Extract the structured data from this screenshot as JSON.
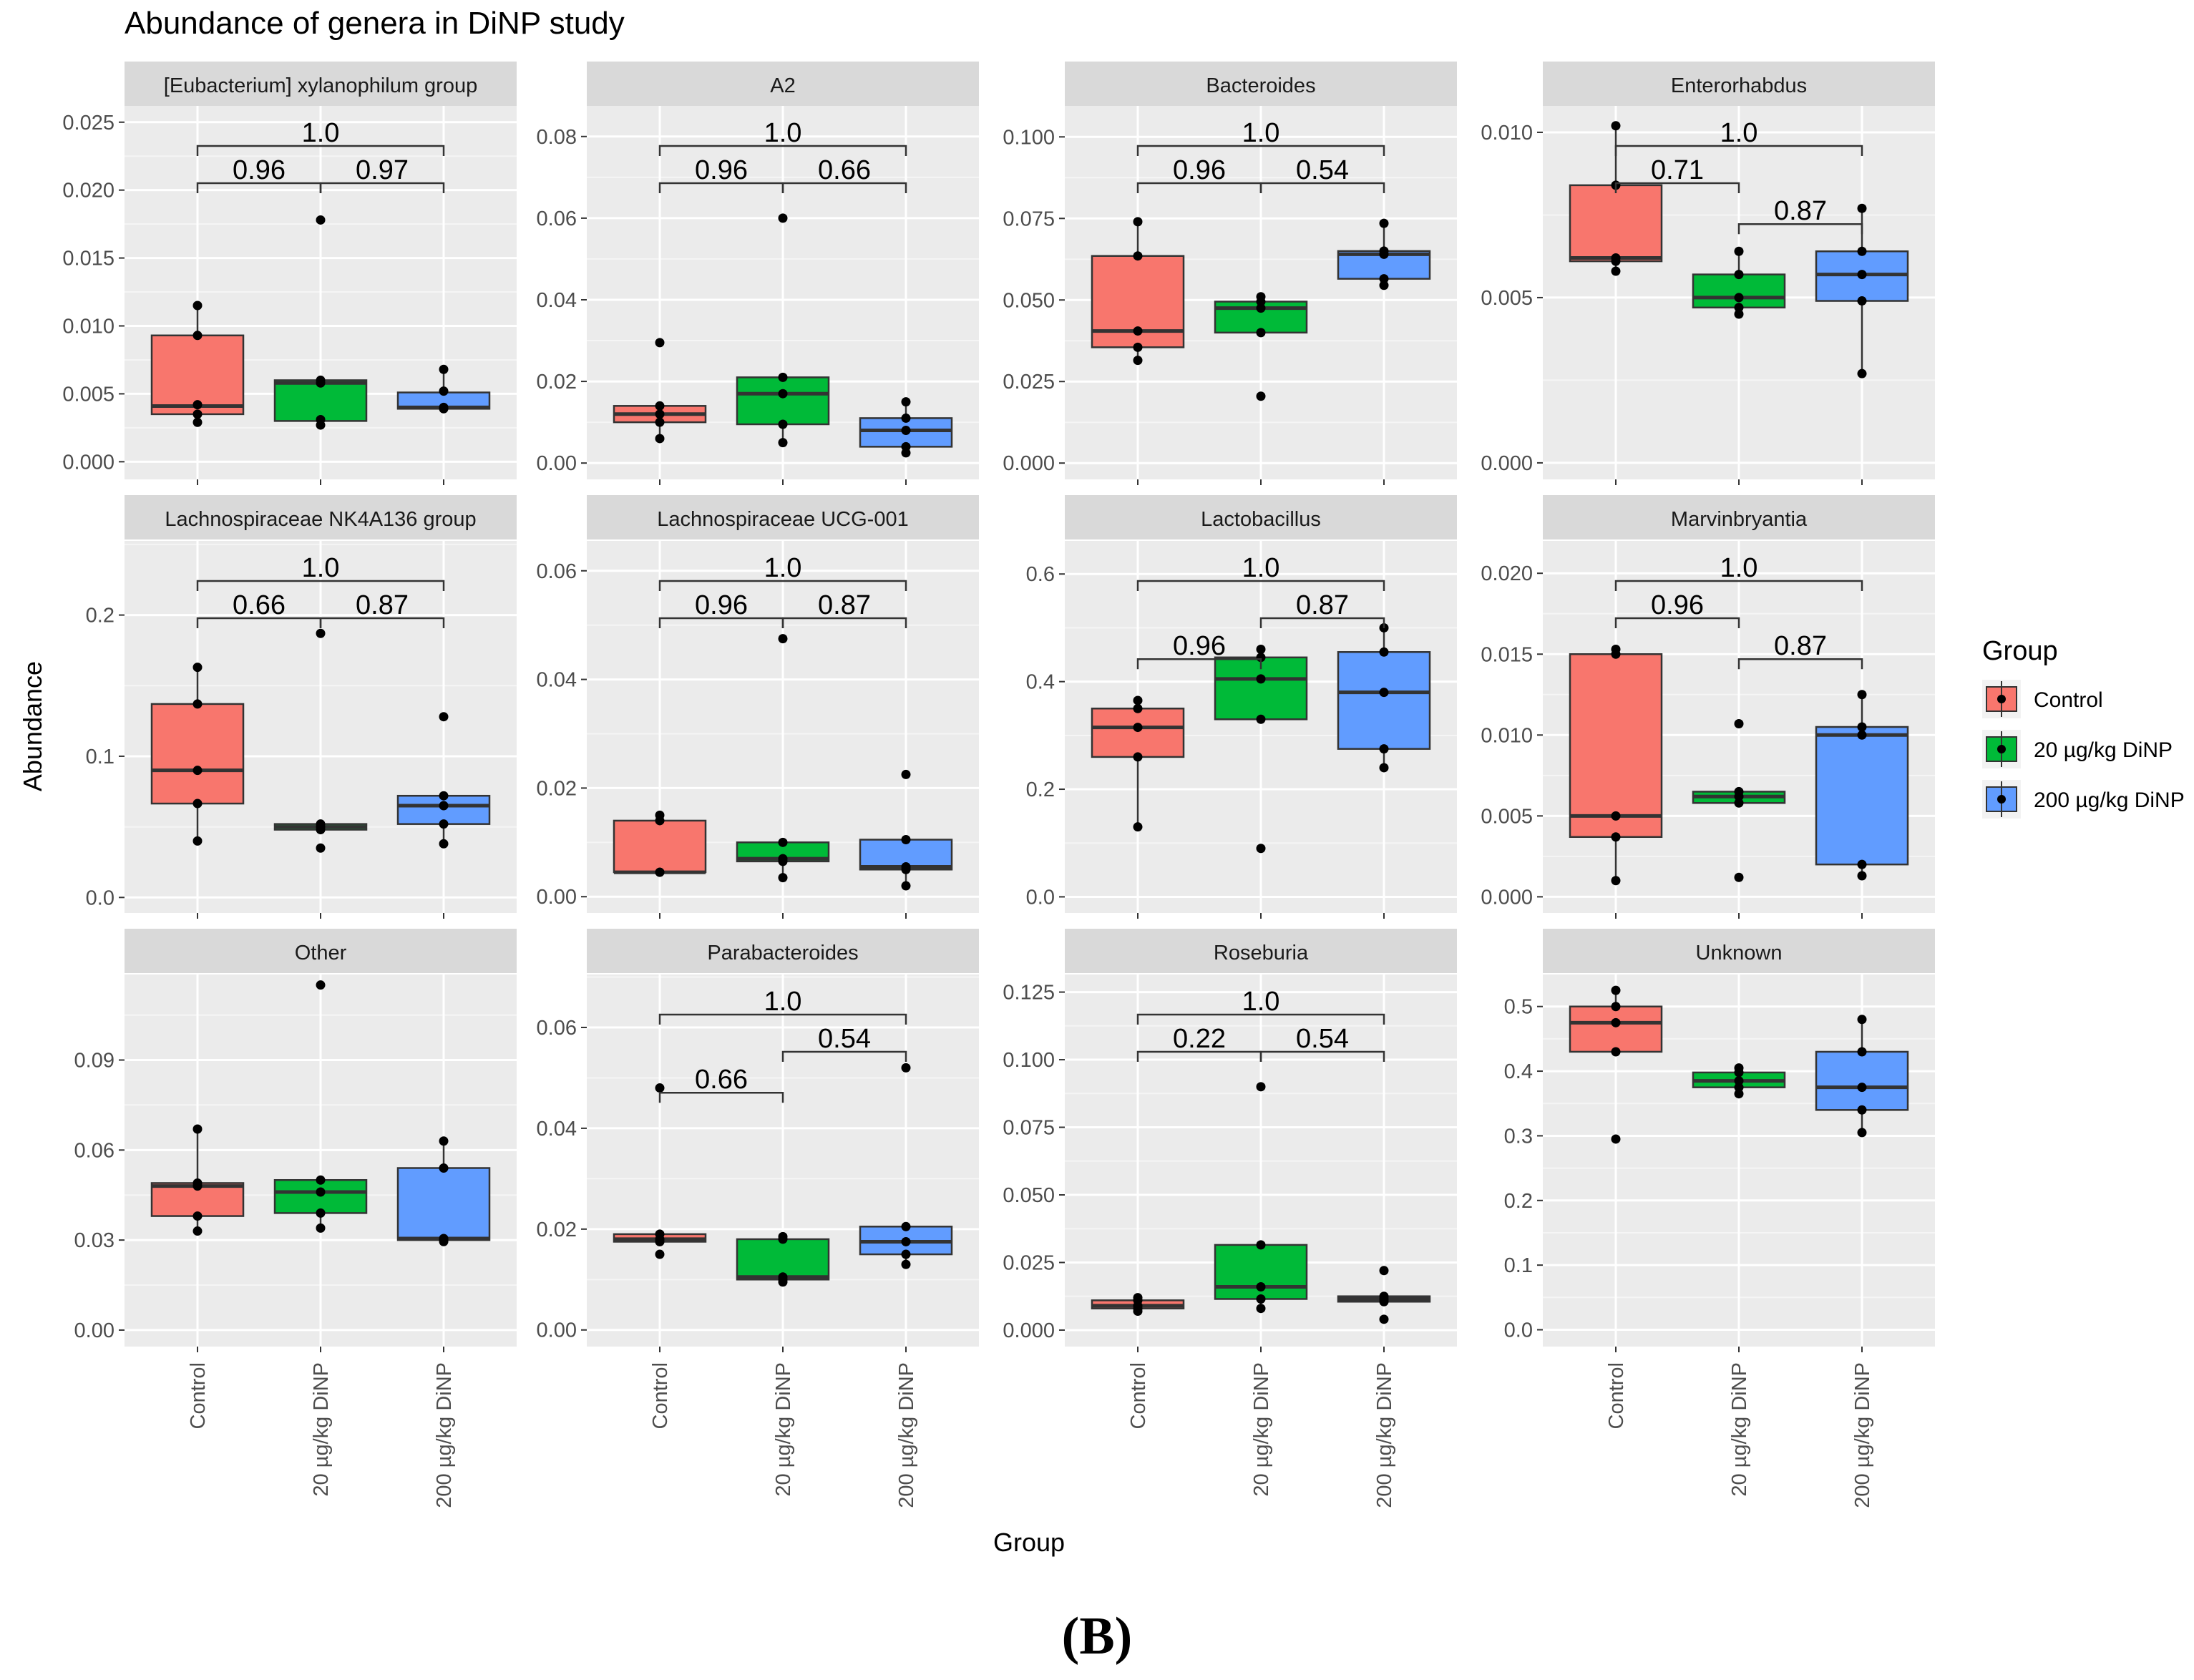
{
  "figure": {
    "title": "Abundance of genera in DiNP study",
    "panel_label": "(B)"
  },
  "chart_data": {
    "type": "box",
    "title": "Abundance of genera in DiNP study",
    "xlabel": "Group",
    "ylabel": "Abundance",
    "grid": true,
    "categories": [
      "Control",
      "20 µg/kg DiNP",
      "200 µg/kg DiNP"
    ],
    "legend": {
      "title": "Group",
      "position": "right",
      "entries": [
        {
          "label": "Control",
          "color": "#F8766D"
        },
        {
          "label": "20 µg/kg DiNP",
          "color": "#00BA38"
        },
        {
          "label": "200 µg/kg DiNP",
          "color": "#619CFF"
        }
      ]
    },
    "facets": [
      {
        "name": "[Eubacterium] xylanophilum group",
        "ylim": [
          -0.0013,
          0.0262
        ],
        "yticks": [
          "0.000",
          "0.005",
          "0.010",
          "0.015",
          "0.020",
          "0.025"
        ],
        "boxes": [
          {
            "q1": 0.0035,
            "median": 0.0041,
            "q3": 0.0093,
            "lo": 0.0029,
            "hi": 0.0115,
            "points": [
              0.0029,
              0.0035,
              0.0042,
              0.0093,
              0.0115
            ]
          },
          {
            "q1": 0.003,
            "median": 0.0058,
            "q3": 0.006,
            "lo": 0.0027,
            "hi": 0.006,
            "outliers": [
              0.0178
            ],
            "points": [
              0.0027,
              0.0031,
              0.0058,
              0.006,
              0.0178
            ]
          },
          {
            "q1": 0.0039,
            "median": 0.004,
            "q3": 0.0051,
            "lo": 0.0039,
            "hi": 0.0068,
            "points": [
              0.0039,
              0.004,
              0.0052,
              0.0068
            ]
          }
        ],
        "comparisons": [
          {
            "from": 0,
            "to": 2,
            "level": 1,
            "label": "1.0"
          },
          {
            "from": 0,
            "to": 1,
            "level": 0,
            "label": "0.96"
          },
          {
            "from": 1,
            "to": 2,
            "level": 0,
            "label": "0.97"
          }
        ]
      },
      {
        "name": "A2",
        "ylim": [
          -0.004,
          0.0875
        ],
        "yticks": [
          "0.00",
          "0.02",
          "0.04",
          "0.06",
          "0.08"
        ],
        "boxes": [
          {
            "q1": 0.01,
            "median": 0.012,
            "q3": 0.014,
            "lo": 0.006,
            "hi": 0.014,
            "outliers": [
              0.0295
            ],
            "points": [
              0.006,
              0.01,
              0.012,
              0.014,
              0.0295
            ]
          },
          {
            "q1": 0.0095,
            "median": 0.017,
            "q3": 0.021,
            "lo": 0.005,
            "hi": 0.021,
            "outliers": [
              0.06
            ],
            "points": [
              0.005,
              0.0095,
              0.017,
              0.021,
              0.06
            ]
          },
          {
            "q1": 0.004,
            "median": 0.008,
            "q3": 0.011,
            "lo": 0.0025,
            "hi": 0.015,
            "points": [
              0.0025,
              0.004,
              0.008,
              0.011,
              0.015
            ]
          }
        ],
        "comparisons": [
          {
            "from": 0,
            "to": 2,
            "level": 1,
            "label": "1.0"
          },
          {
            "from": 0,
            "to": 1,
            "level": 0,
            "label": "0.96"
          },
          {
            "from": 1,
            "to": 2,
            "level": 0,
            "label": "0.66"
          }
        ]
      },
      {
        "name": "Bacteroides",
        "ylim": [
          -0.005,
          0.1095
        ],
        "yticks": [
          "0.000",
          "0.025",
          "0.050",
          "0.075",
          "0.100"
        ],
        "boxes": [
          {
            "q1": 0.0355,
            "median": 0.0405,
            "q3": 0.0635,
            "lo": 0.0315,
            "hi": 0.074,
            "points": [
              0.0315,
              0.0355,
              0.0405,
              0.0635,
              0.074
            ]
          },
          {
            "q1": 0.04,
            "median": 0.0475,
            "q3": 0.0495,
            "lo": 0.04,
            "hi": 0.051,
            "outliers": [
              0.0205
            ],
            "points": [
              0.0205,
              0.04,
              0.0475,
              0.0495,
              0.051
            ]
          },
          {
            "q1": 0.0565,
            "median": 0.064,
            "q3": 0.065,
            "lo": 0.0545,
            "hi": 0.0735,
            "points": [
              0.0545,
              0.0565,
              0.064,
              0.065,
              0.0735
            ]
          }
        ],
        "comparisons": [
          {
            "from": 0,
            "to": 2,
            "level": 1,
            "label": "1.0"
          },
          {
            "from": 0,
            "to": 1,
            "level": 0,
            "label": "0.96"
          },
          {
            "from": 1,
            "to": 2,
            "level": 0,
            "label": "0.54"
          }
        ]
      },
      {
        "name": "Enterorhabdus",
        "ylim": [
          -0.0005,
          0.0108
        ],
        "yticks": [
          "0.000",
          "0.005",
          "0.010"
        ],
        "boxes": [
          {
            "q1": 0.0061,
            "median": 0.0062,
            "q3": 0.0084,
            "lo": 0.0058,
            "hi": 0.0102,
            "points": [
              0.0058,
              0.0061,
              0.0062,
              0.0084,
              0.0102
            ]
          },
          {
            "q1": 0.0047,
            "median": 0.005,
            "q3": 0.0057,
            "lo": 0.0045,
            "hi": 0.0064,
            "points": [
              0.0045,
              0.0047,
              0.005,
              0.0057,
              0.0064
            ]
          },
          {
            "q1": 0.0049,
            "median": 0.0057,
            "q3": 0.0064,
            "lo": 0.0027,
            "hi": 0.0077,
            "points": [
              0.0027,
              0.0049,
              0.0057,
              0.0064,
              0.0077
            ]
          }
        ],
        "comparisons": [
          {
            "from": 0,
            "to": 2,
            "level": 1,
            "label": "1.0"
          },
          {
            "from": 0,
            "to": 1,
            "level": 0,
            "label": "0.71"
          },
          {
            "from": 1,
            "to": 2,
            "level": -1.1,
            "label": "0.87"
          }
        ]
      },
      {
        "name": "Lachnospiraceae NK4A136 group",
        "ylim": [
          -0.011,
          0.2525
        ],
        "yticks": [
          "0.0",
          "0.1",
          "0.2"
        ],
        "boxes": [
          {
            "q1": 0.0665,
            "median": 0.09,
            "q3": 0.137,
            "lo": 0.04,
            "hi": 0.163,
            "points": [
              0.04,
              0.0665,
              0.09,
              0.137,
              0.163
            ]
          },
          {
            "q1": 0.048,
            "median": 0.05,
            "q3": 0.052,
            "lo": 0.048,
            "hi": 0.052,
            "outliers": [
              0.035,
              0.187
            ],
            "points": [
              0.035,
              0.048,
              0.05,
              0.052,
              0.187
            ]
          },
          {
            "q1": 0.052,
            "median": 0.065,
            "q3": 0.072,
            "lo": 0.038,
            "hi": 0.072,
            "outliers": [
              0.128
            ],
            "points": [
              0.038,
              0.052,
              0.065,
              0.072,
              0.128
            ]
          }
        ],
        "comparisons": [
          {
            "from": 0,
            "to": 2,
            "level": 1,
            "label": "1.0"
          },
          {
            "from": 0,
            "to": 1,
            "level": 0,
            "label": "0.66"
          },
          {
            "from": 1,
            "to": 2,
            "level": 0,
            "label": "0.87"
          }
        ]
      },
      {
        "name": "Lachnospiraceae UCG-001",
        "ylim": [
          -0.003,
          0.0655
        ],
        "yticks": [
          "0.00",
          "0.02",
          "0.04",
          "0.06"
        ],
        "boxes": [
          {
            "q1": 0.0045,
            "median": 0.0045,
            "q3": 0.014,
            "lo": 0.0045,
            "hi": 0.015,
            "points": [
              0.0045,
              0.0045,
              0.014,
              0.015
            ]
          },
          {
            "q1": 0.0065,
            "median": 0.007,
            "q3": 0.01,
            "lo": 0.0035,
            "hi": 0.01,
            "outliers": [
              0.0475
            ],
            "points": [
              0.0035,
              0.0065,
              0.007,
              0.01,
              0.0475
            ]
          },
          {
            "q1": 0.005,
            "median": 0.0055,
            "q3": 0.0105,
            "lo": 0.002,
            "hi": 0.0105,
            "outliers": [
              0.0225
            ],
            "points": [
              0.002,
              0.005,
              0.0055,
              0.0105,
              0.0225
            ]
          }
        ],
        "comparisons": [
          {
            "from": 0,
            "to": 2,
            "level": 1,
            "label": "1.0"
          },
          {
            "from": 0,
            "to": 1,
            "level": 0,
            "label": "0.96"
          },
          {
            "from": 1,
            "to": 2,
            "level": 0,
            "label": "0.87"
          }
        ]
      },
      {
        "name": "Lactobacillus",
        "ylim": [
          -0.03,
          0.6615
        ],
        "yticks": [
          "0.0",
          "0.2",
          "0.4",
          "0.6"
        ],
        "boxes": [
          {
            "q1": 0.26,
            "median": 0.315,
            "q3": 0.35,
            "lo": 0.13,
            "hi": 0.365,
            "points": [
              0.13,
              0.26,
              0.315,
              0.35,
              0.365
            ]
          },
          {
            "q1": 0.33,
            "median": 0.405,
            "q3": 0.445,
            "lo": 0.33,
            "hi": 0.46,
            "outliers": [
              0.09
            ],
            "points": [
              0.09,
              0.33,
              0.405,
              0.445,
              0.46
            ]
          },
          {
            "q1": 0.275,
            "median": 0.38,
            "q3": 0.455,
            "lo": 0.24,
            "hi": 0.5,
            "points": [
              0.24,
              0.275,
              0.38,
              0.455,
              0.5
            ]
          }
        ],
        "comparisons": [
          {
            "from": 0,
            "to": 2,
            "level": 1,
            "label": "1.0"
          },
          {
            "from": 1,
            "to": 2,
            "level": 0,
            "label": "0.87"
          },
          {
            "from": 0,
            "to": 1,
            "level": -1.1,
            "label": "0.96"
          }
        ]
      },
      {
        "name": "Marvinbryantia",
        "ylim": [
          -0.001,
          0.022
        ],
        "yticks": [
          "0.000",
          "0.005",
          "0.010",
          "0.015",
          "0.020"
        ],
        "boxes": [
          {
            "q1": 0.0037,
            "median": 0.005,
            "q3": 0.015,
            "lo": 0.001,
            "hi": 0.0153,
            "points": [
              0.001,
              0.0037,
              0.005,
              0.015,
              0.0153
            ]
          },
          {
            "q1": 0.0058,
            "median": 0.0062,
            "q3": 0.0065,
            "lo": 0.0058,
            "hi": 0.0065,
            "outliers": [
              0.0012,
              0.0107
            ],
            "points": [
              0.0012,
              0.0058,
              0.0062,
              0.0065,
              0.0107
            ]
          },
          {
            "q1": 0.002,
            "median": 0.01,
            "q3": 0.0105,
            "lo": 0.0013,
            "hi": 0.0125,
            "points": [
              0.0013,
              0.002,
              0.01,
              0.0105,
              0.0125
            ]
          }
        ],
        "comparisons": [
          {
            "from": 0,
            "to": 2,
            "level": 1,
            "label": "1.0"
          },
          {
            "from": 0,
            "to": 1,
            "level": 0,
            "label": "0.96"
          },
          {
            "from": 1,
            "to": 2,
            "level": -1.1,
            "label": "0.87"
          }
        ]
      },
      {
        "name": "Other",
        "ylim": [
          -0.0055,
          0.1185
        ],
        "yticks": [
          "0.00",
          "0.03",
          "0.06",
          "0.09"
        ],
        "boxes": [
          {
            "q1": 0.038,
            "median": 0.048,
            "q3": 0.049,
            "lo": 0.033,
            "hi": 0.067,
            "points": [
              0.033,
              0.038,
              0.048,
              0.049,
              0.067
            ]
          },
          {
            "q1": 0.039,
            "median": 0.046,
            "q3": 0.05,
            "lo": 0.034,
            "hi": 0.05,
            "outliers": [
              0.115
            ],
            "points": [
              0.034,
              0.039,
              0.046,
              0.05,
              0.115
            ]
          },
          {
            "q1": 0.03,
            "median": 0.0305,
            "q3": 0.054,
            "lo": 0.0295,
            "hi": 0.063,
            "points": [
              0.0295,
              0.03,
              0.0305,
              0.054,
              0.063
            ]
          }
        ],
        "comparisons": []
      },
      {
        "name": "Parabacteroides",
        "ylim": [
          -0.0033,
          0.0705
        ],
        "yticks": [
          "0.00",
          "0.02",
          "0.04",
          "0.06"
        ],
        "boxes": [
          {
            "q1": 0.0175,
            "median": 0.018,
            "q3": 0.019,
            "lo": 0.0175,
            "hi": 0.019,
            "outliers": [
              0.015,
              0.048
            ],
            "points": [
              0.015,
              0.0175,
              0.018,
              0.019,
              0.048
            ]
          },
          {
            "q1": 0.01,
            "median": 0.0105,
            "q3": 0.018,
            "lo": 0.0095,
            "hi": 0.0185,
            "points": [
              0.0095,
              0.01,
              0.0105,
              0.018,
              0.0185
            ]
          },
          {
            "q1": 0.015,
            "median": 0.0175,
            "q3": 0.0205,
            "lo": 0.013,
            "hi": 0.0205,
            "outliers": [
              0.052
            ],
            "points": [
              0.013,
              0.015,
              0.0175,
              0.0205,
              0.052
            ]
          }
        ],
        "comparisons": [
          {
            "from": 0,
            "to": 2,
            "level": 1,
            "label": "1.0"
          },
          {
            "from": 1,
            "to": 2,
            "level": 0,
            "label": "0.54"
          },
          {
            "from": 0,
            "to": 1,
            "level": -1.1,
            "label": "0.66"
          }
        ]
      },
      {
        "name": "Roseburia",
        "ylim": [
          -0.0061,
          0.1315
        ],
        "yticks": [
          "0.000",
          "0.025",
          "0.050",
          "0.075",
          "0.100",
          "0.125"
        ],
        "boxes": [
          {
            "q1": 0.008,
            "median": 0.009,
            "q3": 0.011,
            "lo": 0.007,
            "hi": 0.012,
            "points": [
              0.007,
              0.008,
              0.009,
              0.011,
              0.012
            ]
          },
          {
            "q1": 0.0115,
            "median": 0.016,
            "q3": 0.0315,
            "lo": 0.008,
            "hi": 0.0315,
            "outliers": [
              0.09
            ],
            "points": [
              0.008,
              0.0115,
              0.016,
              0.0315,
              0.09
            ]
          },
          {
            "q1": 0.0105,
            "median": 0.0115,
            "q3": 0.0125,
            "lo": 0.0105,
            "hi": 0.0125,
            "outliers": [
              0.004,
              0.022
            ],
            "points": [
              0.004,
              0.0105,
              0.0115,
              0.0125,
              0.022
            ]
          }
        ],
        "comparisons": [
          {
            "from": 0,
            "to": 2,
            "level": 1,
            "label": "1.0"
          },
          {
            "from": 0,
            "to": 1,
            "level": 0,
            "label": "0.22"
          },
          {
            "from": 1,
            "to": 2,
            "level": 0,
            "label": "0.54"
          }
        ]
      },
      {
        "name": "Unknown",
        "ylim": [
          -0.026,
          0.5495
        ],
        "yticks": [
          "0.0",
          "0.1",
          "0.2",
          "0.3",
          "0.4",
          "0.5"
        ],
        "boxes": [
          {
            "q1": 0.43,
            "median": 0.475,
            "q3": 0.5,
            "lo": 0.43,
            "hi": 0.525,
            "outliers": [
              0.295
            ],
            "points": [
              0.295,
              0.43,
              0.475,
              0.5,
              0.525
            ]
          },
          {
            "q1": 0.375,
            "median": 0.385,
            "q3": 0.398,
            "lo": 0.365,
            "hi": 0.405,
            "points": [
              0.365,
              0.375,
              0.385,
              0.398,
              0.405
            ]
          },
          {
            "q1": 0.34,
            "median": 0.375,
            "q3": 0.43,
            "lo": 0.305,
            "hi": 0.48,
            "points": [
              0.305,
              0.34,
              0.375,
              0.43,
              0.48
            ]
          }
        ],
        "comparisons": []
      }
    ]
  }
}
